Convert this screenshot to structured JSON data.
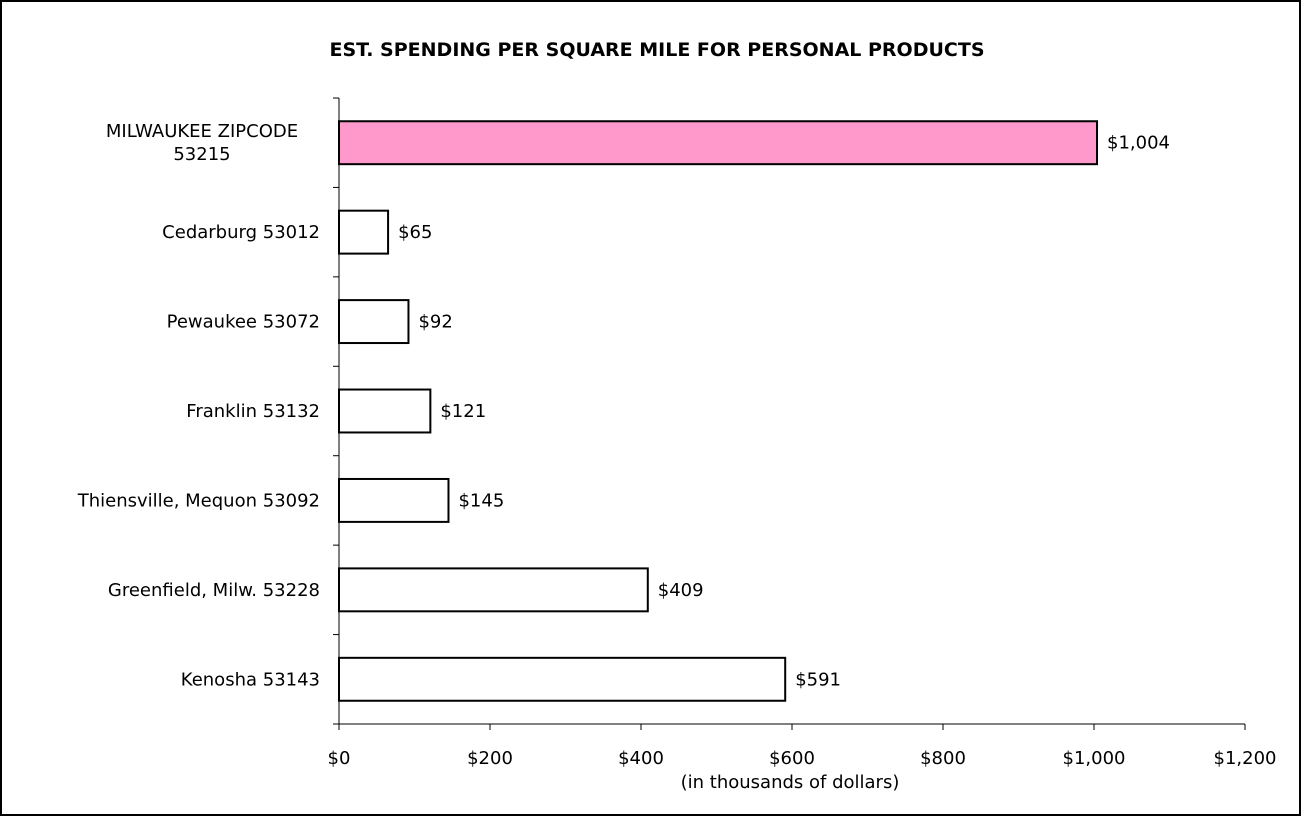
{
  "chart_data": {
    "type": "bar",
    "orientation": "horizontal",
    "title": "EST. SPENDING PER SQUARE MILE FOR PERSONAL PRODUCTS",
    "xlabel": "(in thousands of dollars)",
    "ylabel": "",
    "categories": [
      [
        "MILWAUKEE ZIPCODE",
        "53215"
      ],
      [
        "Cedarburg 53012"
      ],
      [
        "Pewaukee 53072"
      ],
      [
        "Franklin 53132"
      ],
      [
        "Thiensville, Mequon 53092"
      ],
      [
        "Greenfield, Milw. 53228"
      ],
      [
        "Kenosha 53143"
      ]
    ],
    "values": [
      1004,
      65,
      92,
      121,
      145,
      409,
      591
    ],
    "data_labels": [
      "$1,004",
      "$65",
      "$92",
      "$121",
      "$145",
      "$409",
      "$591"
    ],
    "bar_colors": [
      "#ff99cc",
      "#ffffff",
      "#ffffff",
      "#ffffff",
      "#ffffff",
      "#ffffff",
      "#ffffff"
    ],
    "bar_edge_color": "#000000",
    "xlim": [
      0,
      1200
    ],
    "xticks": [
      0,
      200,
      400,
      600,
      800,
      1000,
      1200
    ],
    "xtick_labels": [
      "$0",
      "$200",
      "$400",
      "$600",
      "$800",
      "$1,000",
      "$1,200"
    ],
    "grid": false,
    "legend": "none"
  }
}
